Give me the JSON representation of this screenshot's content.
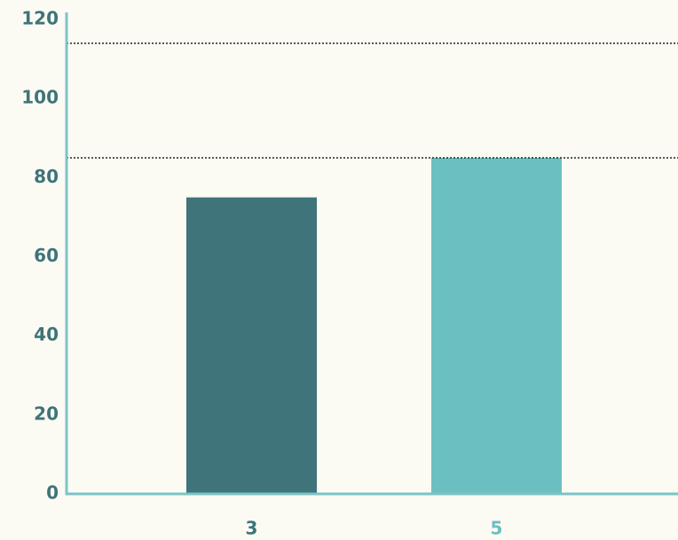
{
  "chart_data": {
    "type": "bar",
    "categories": [
      "3",
      "5"
    ],
    "values": [
      75,
      85
    ],
    "colors": [
      "#3e747a",
      "#6bbfc1"
    ],
    "ylim": [
      0,
      120
    ],
    "yticks": [
      0,
      20,
      40,
      60,
      80,
      100,
      120
    ],
    "reference_lines": [
      85,
      114
    ],
    "tick_color": "#3e747a",
    "axis_color": "#7cc4c6",
    "grid": false
  }
}
